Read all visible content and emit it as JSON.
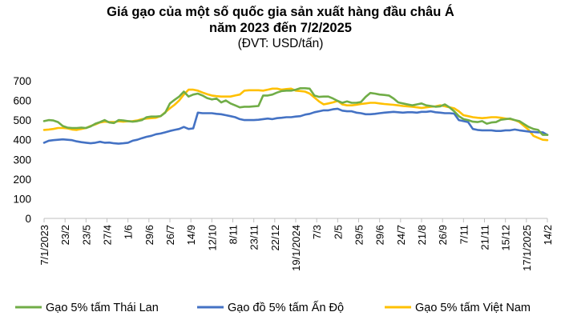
{
  "chart_data": {
    "type": "line",
    "title_line1": "Giá gạo của một số quốc gia sản xuất hàng đầu châu Á",
    "title_line2": "năm 2023 đến 7/2/2025",
    "subtitle": "(ĐVT: USD/tấn)",
    "xlabel": "",
    "ylabel": "",
    "ylim": [
      0,
      700
    ],
    "yticks": [
      0,
      100,
      200,
      300,
      400,
      500,
      600,
      700
    ],
    "grid": false,
    "legend_position": "bottom",
    "x_tick_labels": [
      "7/1/2023",
      "23/2",
      "23/5",
      "27/4",
      "1/6",
      "29/6",
      "26/7",
      "14/9",
      "12/10",
      "8/11",
      "23/11",
      "22/12",
      "19/1/2024",
      "7/3",
      "2/5",
      "29/5",
      "29/6",
      "24/7",
      "21/8",
      "26/9",
      "7/11",
      "21/11",
      "15/12",
      "17/1/2025",
      "14/2"
    ],
    "series": [
      {
        "name": "Gạo 5% tấm Thái Lan",
        "color": "#70ad47",
        "values": [
          495,
          500,
          498,
          490,
          470,
          462,
          460,
          460,
          462,
          460,
          468,
          482,
          490,
          500,
          488,
          485,
          500,
          498,
          495,
          492,
          495,
          500,
          515,
          518,
          518,
          520,
          538,
          585,
          603,
          620,
          645,
          620,
          630,
          635,
          625,
          612,
          605,
          610,
          590,
          600,
          585,
          575,
          565,
          568,
          568,
          570,
          572,
          625,
          625,
          630,
          640,
          648,
          650,
          650,
          655,
          662,
          662,
          660,
          625,
          618,
          620,
          620,
          610,
          598,
          588,
          595,
          588,
          588,
          592,
          618,
          638,
          635,
          630,
          628,
          625,
          610,
          590,
          585,
          580,
          575,
          580,
          585,
          575,
          572,
          568,
          570,
          580,
          565,
          545,
          520,
          505,
          500,
          492,
          490,
          495,
          482,
          488,
          490,
          502,
          505,
          508,
          500,
          495,
          480,
          465,
          455,
          450,
          425,
          425
        ]
      },
      {
        "name": "Gạo đồ 5% tấm Ấn Độ",
        "color": "#4472c4",
        "values": [
          385,
          395,
          398,
          400,
          402,
          400,
          398,
          392,
          388,
          385,
          382,
          385,
          390,
          385,
          386,
          382,
          380,
          382,
          385,
          395,
          400,
          408,
          415,
          420,
          428,
          432,
          438,
          445,
          450,
          455,
          465,
          455,
          458,
          538,
          535,
          535,
          535,
          532,
          530,
          525,
          520,
          515,
          505,
          500,
          500,
          500,
          502,
          505,
          508,
          505,
          510,
          512,
          515,
          515,
          518,
          520,
          528,
          532,
          540,
          545,
          550,
          550,
          555,
          558,
          548,
          545,
          545,
          538,
          535,
          530,
          530,
          532,
          535,
          538,
          540,
          542,
          540,
          538,
          540,
          540,
          538,
          542,
          542,
          545,
          540,
          538,
          535,
          535,
          533,
          500,
          495,
          490,
          455,
          450,
          448,
          448,
          448,
          445,
          445,
          448,
          448,
          452,
          448,
          445,
          442,
          440,
          438,
          438,
          425
        ]
      },
      {
        "name": "Gạo 5% tấm Việt Nam",
        "color": "#ffc000",
        "values": [
          450,
          452,
          455,
          460,
          460,
          458,
          452,
          450,
          455,
          460,
          470,
          478,
          488,
          492,
          490,
          490,
          494,
          492,
          494,
          495,
          498,
          505,
          508,
          510,
          512,
          520,
          540,
          560,
          578,
          600,
          630,
          655,
          655,
          650,
          640,
          632,
          625,
          622,
          620,
          620,
          620,
          625,
          630,
          650,
          652,
          652,
          652,
          650,
          655,
          660,
          660,
          655,
          658,
          660,
          650,
          648,
          645,
          635,
          615,
          595,
          580,
          585,
          590,
          598,
          580,
          575,
          575,
          578,
          582,
          585,
          588,
          588,
          585,
          582,
          580,
          578,
          575,
          572,
          570,
          568,
          565,
          562,
          565,
          568,
          570,
          575,
          570,
          565,
          560,
          545,
          525,
          520,
          515,
          512,
          510,
          512,
          515,
          515,
          512,
          508,
          505,
          500,
          490,
          470,
          450,
          420,
          410,
          400,
          398
        ]
      }
    ]
  }
}
